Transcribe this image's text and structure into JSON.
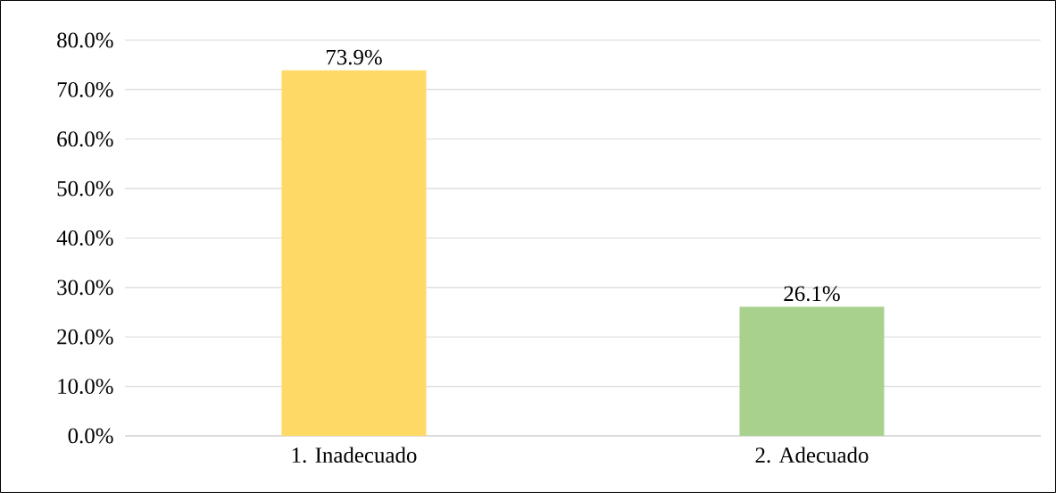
{
  "chart_data": {
    "type": "bar",
    "categories": [
      "1. Inadecuado",
      "2. Adecuado"
    ],
    "values": [
      73.9,
      26.1
    ],
    "colors": [
      "#ffd966",
      "#a9d18e"
    ],
    "value_labels": [
      "73.9%",
      "26.1%"
    ],
    "ylim": [
      0,
      80
    ],
    "yticks": [
      {
        "value": 0,
        "label": "0.0%"
      },
      {
        "value": 10,
        "label": "10.0%"
      },
      {
        "value": 20,
        "label": "20.0%"
      },
      {
        "value": 30,
        "label": "30.0%"
      },
      {
        "value": 40,
        "label": "40.0%"
      },
      {
        "value": 50,
        "label": "50.0%"
      },
      {
        "value": 60,
        "label": "60.0%"
      },
      {
        "value": 70,
        "label": "70.0%"
      },
      {
        "value": 80,
        "label": "80.0%"
      }
    ],
    "grid": "y"
  }
}
